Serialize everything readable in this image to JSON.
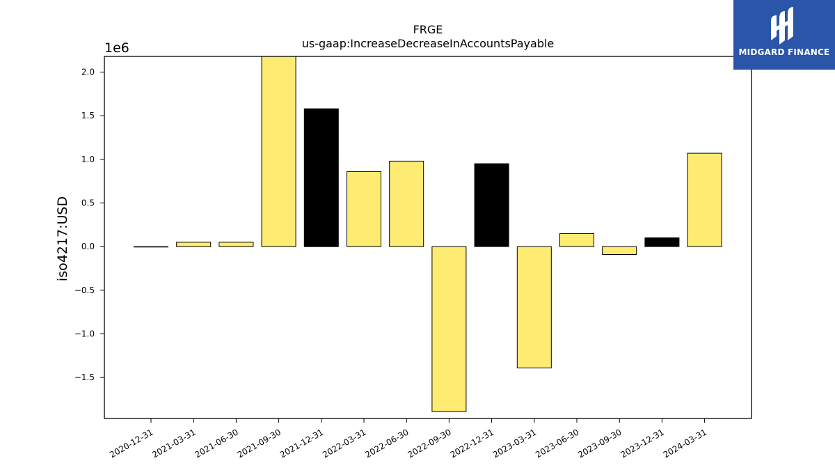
{
  "chart_data": {
    "type": "bar",
    "title": "FRGE",
    "subtitle": "us-gaap:IncreaseDecreaseInAccountsPayable",
    "ylabel": "iso4217:USD",
    "xlabel": "",
    "y_scale_label": "1e6",
    "ylim": [
      -1.97,
      2.18
    ],
    "yticks": [
      -1.5,
      -1.0,
      -0.5,
      0.0,
      0.5,
      1.0,
      1.5,
      2.0
    ],
    "ytick_labels": [
      "−1.5",
      "−1.0",
      "−0.5",
      "0.0",
      "0.5",
      "1.0",
      "1.5",
      "2.0"
    ],
    "categories": [
      "2020-12-31",
      "2021-03-31",
      "2021-06-30",
      "2021-09-30",
      "2021-12-31",
      "2022-03-31",
      "2022-06-30",
      "2022-09-30",
      "2022-12-31",
      "2023-03-31",
      "2023-06-30",
      "2023-09-30",
      "2023-12-31",
      "2024-03-31"
    ],
    "values": [
      -0.005,
      0.05,
      0.05,
      2.18,
      1.58,
      0.86,
      0.98,
      -1.89,
      0.95,
      -1.39,
      0.15,
      -0.09,
      0.1,
      1.07
    ],
    "bar_colors": [
      "#fdeb72",
      "#fdeb72",
      "#fdeb72",
      "#fdeb72",
      "#000000",
      "#fdeb72",
      "#fdeb72",
      "#fdeb72",
      "#000000",
      "#fdeb72",
      "#fdeb72",
      "#fdeb72",
      "#000000",
      "#fdeb72"
    ],
    "grid": false,
    "legend": "none"
  },
  "logo": {
    "text": "MIDGARD FINANCE",
    "background": "#2a55a8"
  }
}
